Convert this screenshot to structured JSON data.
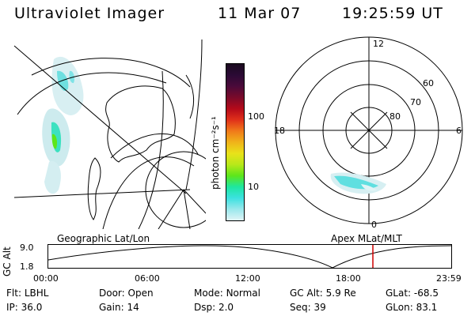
{
  "header": {
    "instrument": "Ultraviolet Imager",
    "date": "11 Mar 07",
    "time": "19:25:59 UT"
  },
  "colorbar": {
    "unit_label": "photon cm⁻²s⁻¹",
    "ticks": [
      "100",
      "10"
    ],
    "colors": [
      "#1a0b1f",
      "#2b0a35",
      "#4b0a3a",
      "#7a0a2a",
      "#b40a1a",
      "#e0301a",
      "#f07a1a",
      "#f0b31a",
      "#e9e21a",
      "#b8e81a",
      "#5de61a",
      "#1ee7a0",
      "#3ce1e0",
      "#9ae8ec",
      "#e0f4f6"
    ]
  },
  "left_map": {
    "label": "Geographic Lat/Lon"
  },
  "right_map": {
    "label": "Apex MLat/MLT",
    "mlt_labels": {
      "top": "12",
      "left": "18",
      "right": "6",
      "bottom": "0"
    },
    "lat_labels": [
      "60",
      "70",
      "80"
    ]
  },
  "altitude_plot": {
    "axis_label": "GC Alt",
    "y_ticks": [
      "9.0",
      "1.8"
    ],
    "x_ticks": [
      "00:00",
      "06:00",
      "12:00",
      "18:00",
      "23:59"
    ],
    "current_time_marker_color": "#d00000"
  },
  "footer": {
    "row1": [
      {
        "label": "Flt:",
        "value": "LBHL"
      },
      {
        "label": "Door:",
        "value": "Open"
      },
      {
        "label": "Mode:",
        "value": "Normal"
      },
      {
        "label": "GC Alt:",
        "value": "5.9 Re"
      },
      {
        "label": "GLat:",
        "value": "-68.5"
      }
    ],
    "row2": [
      {
        "label": "IP:",
        "value": "36.0"
      },
      {
        "label": "Gain:",
        "value": "14"
      },
      {
        "label": "Dsp:",
        "value": "2.0"
      },
      {
        "label": "Seq:",
        "value": "39"
      },
      {
        "label": "GLon:",
        "value": "83.1"
      }
    ]
  }
}
